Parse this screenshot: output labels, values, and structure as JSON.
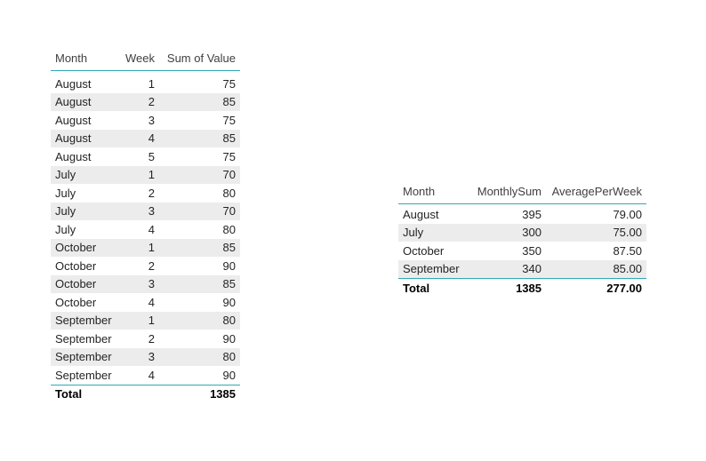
{
  "left_table": {
    "headers": [
      "Month",
      "Week",
      "Sum of Value"
    ],
    "rows": [
      [
        "August",
        "1",
        "75"
      ],
      [
        "August",
        "2",
        "85"
      ],
      [
        "August",
        "3",
        "75"
      ],
      [
        "August",
        "4",
        "85"
      ],
      [
        "August",
        "5",
        "75"
      ],
      [
        "July",
        "1",
        "70"
      ],
      [
        "July",
        "2",
        "80"
      ],
      [
        "July",
        "3",
        "70"
      ],
      [
        "July",
        "4",
        "80"
      ],
      [
        "October",
        "1",
        "85"
      ],
      [
        "October",
        "2",
        "90"
      ],
      [
        "October",
        "3",
        "85"
      ],
      [
        "October",
        "4",
        "90"
      ],
      [
        "September",
        "1",
        "80"
      ],
      [
        "September",
        "2",
        "90"
      ],
      [
        "September",
        "3",
        "80"
      ],
      [
        "September",
        "4",
        "90"
      ]
    ],
    "total": [
      "Total",
      "",
      "1385"
    ]
  },
  "right_table": {
    "headers": [
      "Month",
      "MonthlySum",
      "AveragePerWeek"
    ],
    "rows": [
      [
        "August",
        "395",
        "79.00"
      ],
      [
        "July",
        "300",
        "75.00"
      ],
      [
        "October",
        "350",
        "87.50"
      ],
      [
        "September",
        "340",
        "85.00"
      ]
    ],
    "total": [
      "Total",
      "1385",
      "277.00"
    ]
  },
  "colors": {
    "accent_line": "#2fa8b8",
    "row_alt": "#ececec"
  }
}
